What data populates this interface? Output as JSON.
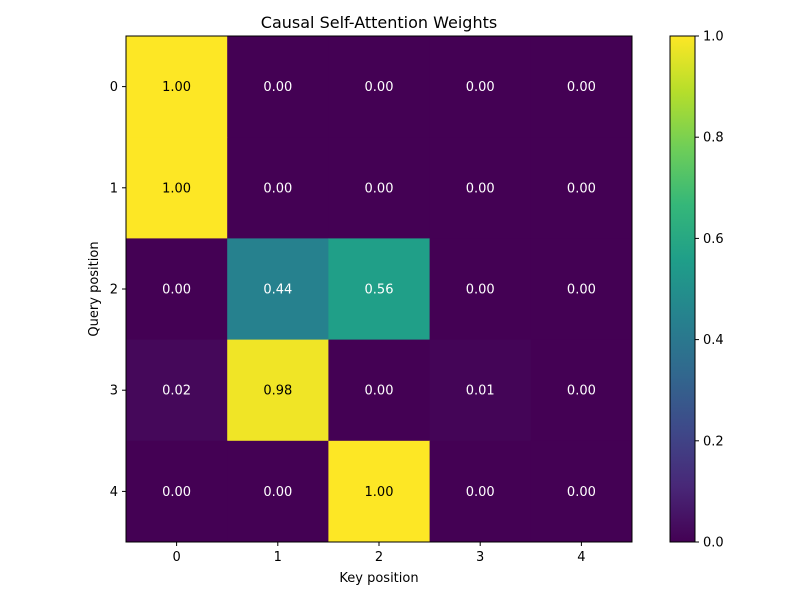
{
  "chart_data": {
    "type": "heatmap",
    "title": "Causal Self-Attention Weights",
    "xlabel": "Key position",
    "ylabel": "Query position",
    "x_ticks": [
      "0",
      "1",
      "2",
      "3",
      "4"
    ],
    "y_ticks": [
      "0",
      "1",
      "2",
      "3",
      "4"
    ],
    "values": [
      [
        1.0,
        0.0,
        0.0,
        0.0,
        0.0
      ],
      [
        1.0,
        0.0,
        0.0,
        0.0,
        0.0
      ],
      [
        0.0,
        0.44,
        0.56,
        0.0,
        0.0
      ],
      [
        0.02,
        0.98,
        0.0,
        0.01,
        0.0
      ],
      [
        0.0,
        0.0,
        1.0,
        0.0,
        0.0
      ]
    ],
    "cell_labels": [
      [
        "1.00",
        "0.00",
        "0.00",
        "0.00",
        "0.00"
      ],
      [
        "1.00",
        "0.00",
        "0.00",
        "0.00",
        "0.00"
      ],
      [
        "0.00",
        "0.44",
        "0.56",
        "0.00",
        "0.00"
      ],
      [
        "0.02",
        "0.98",
        "0.00",
        "0.01",
        "0.00"
      ],
      [
        "0.00",
        "0.00",
        "1.00",
        "0.00",
        "0.00"
      ]
    ],
    "colormap": "viridis",
    "colorbar": {
      "range": [
        0.0,
        1.0
      ],
      "ticks": [
        "0.0",
        "0.2",
        "0.4",
        "0.6",
        "0.8",
        "1.0"
      ]
    },
    "grid": false,
    "legend": "colorbar-right"
  },
  "colors": {
    "viridis_stops": [
      "#440154",
      "#482878",
      "#3e4989",
      "#31688e",
      "#26828e",
      "#1f9e89",
      "#35b779",
      "#6ece58",
      "#b5de2b",
      "#fde725"
    ],
    "axis": "#000000",
    "background": "#ffffff"
  }
}
